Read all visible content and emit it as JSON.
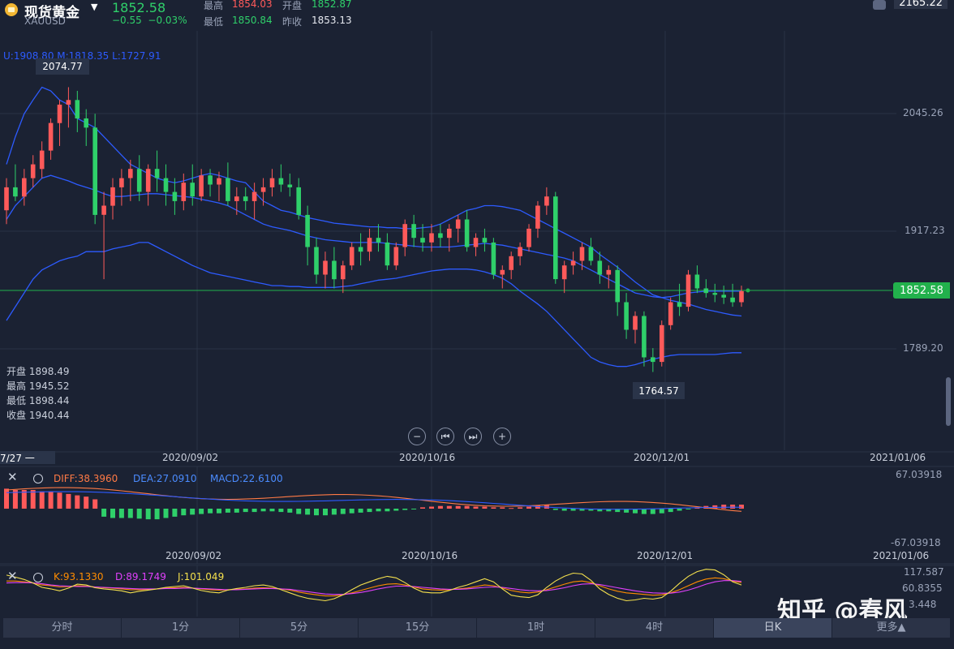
{
  "header": {
    "name": "现货黄金",
    "symbol": "XAUUSD",
    "price": "1852.58",
    "change": "−0.55",
    "change_pct": "−0.03%",
    "high_label": "最高",
    "high_value": "1854.03",
    "open_label": "开盘",
    "open_value": "1852.87",
    "low_label": "最低",
    "low_value": "1850.84",
    "prev_label": "昨收",
    "prev_value": "1853.13",
    "top_right_value": "2165.22"
  },
  "boll": {
    "text": "U:1908.80   M:1818.35   L:1727.91"
  },
  "ohlc_box": {
    "open_label": "开盘",
    "open_value": "1898.49",
    "high_label": "最高",
    "high_value": "1945.52",
    "low_label": "最低",
    "low_value": "1898.44",
    "close_label": "收盘",
    "close_value": "1940.44"
  },
  "markers": {
    "high": "2074.77",
    "low": "1764.57",
    "current": "1852.58"
  },
  "start_date": "7/27 一",
  "macd": {
    "diff": "DIFF:38.3960",
    "dea": "DEA:27.0910",
    "macd": "MACD:22.6100",
    "ymax": "67.03918",
    "ymin": "-67.03918"
  },
  "kdj": {
    "k": "K:93.1330",
    "d": "D:89.1749",
    "j": "J:101.049",
    "ytop": "117.587",
    "ymid": "60.8355",
    "ylow": "3.448"
  },
  "tabs": [
    "分时",
    "1分",
    "5分",
    "15分",
    "1时",
    "4时",
    "日K",
    "更多▲"
  ],
  "watermark": "知乎 @春风",
  "colors": {
    "up": "#ff5a5a",
    "down": "#2fd06a",
    "band": "#2d5bff",
    "mid_line": "#2d5bff",
    "diff": "#ff7a45",
    "dea": "#2d5bff",
    "k": "#ff8c00",
    "d": "#e040fb",
    "j": "#f4e04d",
    "current_line": "#22b14c"
  },
  "chart_data": {
    "type": "candlestick",
    "title": "现货黄金 XAUUSD 日K",
    "x_ticks": [
      "2020/09/02",
      "2020/10/16",
      "2020/12/01",
      "2021/01/06"
    ],
    "y_ticks": [
      2045.26,
      1917.23,
      1789.2
    ],
    "current_price": 1852.58,
    "ohlc": [
      [
        1940,
        1975,
        1925,
        1965
      ],
      [
        1965,
        1990,
        1950,
        1955
      ],
      [
        1955,
        1985,
        1945,
        1975
      ],
      [
        1975,
        2000,
        1965,
        1990
      ],
      [
        1985,
        2015,
        1975,
        2005
      ],
      [
        2005,
        2040,
        1995,
        2035
      ],
      [
        2035,
        2060,
        2010,
        2055
      ],
      [
        2055,
        2074,
        2030,
        2060
      ],
      [
        2060,
        2070,
        2025,
        2040
      ],
      [
        2040,
        2050,
        2010,
        2030
      ],
      [
        2030,
        2045,
        1925,
        1935
      ],
      [
        1935,
        1960,
        1865,
        1945
      ],
      [
        1945,
        1975,
        1930,
        1965
      ],
      [
        1965,
        1985,
        1945,
        1975
      ],
      [
        1975,
        1995,
        1950,
        1985
      ],
      [
        1985,
        2000,
        1950,
        1960
      ],
      [
        1960,
        1990,
        1945,
        1985
      ],
      [
        1985,
        2005,
        1960,
        1975
      ],
      [
        1975,
        1990,
        1945,
        1960
      ],
      [
        1960,
        1975,
        1935,
        1950
      ],
      [
        1950,
        1980,
        1940,
        1970
      ],
      [
        1970,
        1990,
        1945,
        1955
      ],
      [
        1955,
        1985,
        1950,
        1978
      ],
      [
        1978,
        1985,
        1955,
        1968
      ],
      [
        1968,
        1982,
        1950,
        1975
      ],
      [
        1975,
        1992,
        1945,
        1950
      ],
      [
        1950,
        1965,
        1935,
        1955
      ],
      [
        1955,
        1965,
        1940,
        1950
      ],
      [
        1950,
        1970,
        1930,
        1960
      ],
      [
        1960,
        1975,
        1945,
        1965
      ],
      [
        1965,
        1985,
        1955,
        1975
      ],
      [
        1975,
        1990,
        1960,
        1968
      ],
      [
        1968,
        1980,
        1955,
        1965
      ],
      [
        1965,
        1975,
        1930,
        1935
      ],
      [
        1935,
        1945,
        1880,
        1900
      ],
      [
        1900,
        1910,
        1860,
        1870
      ],
      [
        1870,
        1895,
        1855,
        1885
      ],
      [
        1885,
        1900,
        1855,
        1865
      ],
      [
        1865,
        1885,
        1850,
        1880
      ],
      [
        1880,
        1905,
        1875,
        1900
      ],
      [
        1900,
        1915,
        1880,
        1895
      ],
      [
        1895,
        1920,
        1885,
        1910
      ],
      [
        1910,
        1925,
        1895,
        1905
      ],
      [
        1905,
        1915,
        1875,
        1880
      ],
      [
        1880,
        1905,
        1875,
        1900
      ],
      [
        1900,
        1930,
        1890,
        1925
      ],
      [
        1925,
        1935,
        1900,
        1910
      ],
      [
        1910,
        1925,
        1895,
        1905
      ],
      [
        1905,
        1925,
        1895,
        1915
      ],
      [
        1915,
        1925,
        1900,
        1910
      ],
      [
        1910,
        1925,
        1895,
        1920
      ],
      [
        1920,
        1935,
        1905,
        1930
      ],
      [
        1930,
        1940,
        1895,
        1900
      ],
      [
        1900,
        1915,
        1890,
        1910
      ],
      [
        1910,
        1920,
        1895,
        1905
      ],
      [
        1905,
        1910,
        1865,
        1870
      ],
      [
        1870,
        1880,
        1855,
        1875
      ],
      [
        1875,
        1895,
        1865,
        1890
      ],
      [
        1890,
        1905,
        1880,
        1900
      ],
      [
        1900,
        1925,
        1895,
        1920
      ],
      [
        1920,
        1950,
        1910,
        1945
      ],
      [
        1945,
        1965,
        1935,
        1955
      ],
      [
        1955,
        1960,
        1860,
        1865
      ],
      [
        1865,
        1885,
        1850,
        1880
      ],
      [
        1880,
        1895,
        1870,
        1885
      ],
      [
        1885,
        1905,
        1875,
        1900
      ],
      [
        1900,
        1910,
        1880,
        1885
      ],
      [
        1885,
        1895,
        1860,
        1870
      ],
      [
        1870,
        1880,
        1855,
        1875
      ],
      [
        1875,
        1880,
        1825,
        1840
      ],
      [
        1840,
        1850,
        1800,
        1810
      ],
      [
        1810,
        1830,
        1795,
        1825
      ],
      [
        1825,
        1830,
        1770,
        1780
      ],
      [
        1780,
        1790,
        1764,
        1775
      ],
      [
        1775,
        1820,
        1770,
        1815
      ],
      [
        1815,
        1845,
        1810,
        1840
      ],
      [
        1840,
        1860,
        1825,
        1835
      ],
      [
        1835,
        1875,
        1830,
        1870
      ],
      [
        1870,
        1880,
        1850,
        1855
      ],
      [
        1855,
        1865,
        1845,
        1850
      ],
      [
        1850,
        1860,
        1840,
        1848
      ],
      [
        1848,
        1858,
        1838,
        1845
      ],
      [
        1845,
        1860,
        1835,
        1840
      ],
      [
        1840,
        1858,
        1835,
        1852
      ]
    ],
    "boll_upper": [
      1990,
      2020,
      2045,
      2060,
      2074,
      2070,
      2060,
      2055,
      2040,
      2035,
      2030,
      2020,
      2010,
      2000,
      1990,
      1985,
      1980,
      1975,
      1972,
      1970,
      1972,
      1975,
      1978,
      1980,
      1978,
      1975,
      1972,
      1970,
      1960,
      1950,
      1945,
      1940,
      1938,
      1935,
      1932,
      1930,
      1928,
      1926,
      1925,
      1924,
      1923,
      1922,
      1922,
      1921,
      1921,
      1920,
      1920,
      1921,
      1922,
      1925,
      1930,
      1935,
      1940,
      1942,
      1945,
      1945,
      1944,
      1942,
      1940,
      1935,
      1930,
      1925,
      1920,
      1915,
      1910,
      1905,
      1900,
      1892,
      1885,
      1878,
      1870,
      1862,
      1855,
      1848,
      1845,
      1842,
      1840,
      1838,
      1835,
      1832,
      1830,
      1828,
      1826,
      1825
    ],
    "boll_mid": [
      1930,
      1945,
      1955,
      1965,
      1975,
      1978,
      1975,
      1972,
      1968,
      1965,
      1962,
      1958,
      1955,
      1955,
      1956,
      1957,
      1958,
      1958,
      1957,
      1956,
      1955,
      1954,
      1952,
      1950,
      1948,
      1945,
      1940,
      1935,
      1930,
      1925,
      1922,
      1920,
      1918,
      1915,
      1912,
      1910,
      1908,
      1907,
      1906,
      1905,
      1905,
      1905,
      1905,
      1904,
      1903,
      1902,
      1901,
      1900,
      1900,
      1900,
      1900,
      1901,
      1902,
      1903,
      1904,
      1903,
      1902,
      1900,
      1898,
      1896,
      1894,
      1892,
      1890,
      1888,
      1885,
      1880,
      1875,
      1870,
      1865,
      1860,
      1855,
      1850,
      1848,
      1846,
      1845,
      1846,
      1848,
      1850,
      1851,
      1852,
      1852,
      1852,
      1852,
      1852
    ],
    "boll_lower": [
      1820,
      1835,
      1850,
      1865,
      1875,
      1880,
      1885,
      1888,
      1890,
      1895,
      1895,
      1895,
      1898,
      1900,
      1902,
      1905,
      1905,
      1900,
      1895,
      1890,
      1885,
      1880,
      1876,
      1872,
      1870,
      1868,
      1866,
      1864,
      1862,
      1860,
      1858,
      1858,
      1857,
      1857,
      1856,
      1856,
      1856,
      1856,
      1857,
      1858,
      1860,
      1862,
      1864,
      1865,
      1866,
      1868,
      1870,
      1872,
      1874,
      1875,
      1876,
      1876,
      1876,
      1875,
      1873,
      1870,
      1866,
      1860,
      1852,
      1845,
      1838,
      1830,
      1820,
      1810,
      1800,
      1790,
      1780,
      1775,
      1772,
      1770,
      1770,
      1772,
      1775,
      1778,
      1780,
      1782,
      1783,
      1783,
      1783,
      1783,
      1783,
      1784,
      1785,
      1785
    ],
    "macd_hist": [
      30,
      28,
      28,
      28,
      26,
      26,
      24,
      22,
      20,
      18,
      14,
      -12,
      -14,
      -14,
      -14,
      -15,
      -16,
      -16,
      -14,
      -12,
      -10,
      -9,
      -8,
      -7,
      -7,
      -6,
      -6,
      -5,
      -5,
      -4,
      -4,
      -5,
      -6,
      -8,
      -9,
      -10,
      -10,
      -9,
      -8,
      -7,
      -6,
      -5,
      -4,
      -4,
      -3,
      -2,
      -1,
      2,
      3,
      4,
      4,
      4,
      4,
      3,
      3,
      2,
      2,
      1,
      2,
      3,
      5,
      6,
      -2,
      -3,
      -3,
      -3,
      -3,
      -4,
      -4,
      -5,
      -6,
      -7,
      -8,
      -8,
      -7,
      -5,
      -3,
      -1,
      2,
      4,
      5,
      6,
      6,
      6
    ],
    "kdj_k": [
      80,
      80,
      78,
      75,
      70,
      68,
      65,
      66,
      68,
      67,
      65,
      63,
      62,
      60,
      58,
      58,
      59,
      60,
      62,
      63,
      64,
      62,
      60,
      58,
      57,
      58,
      59,
      60,
      62,
      63,
      62,
      60,
      57,
      52,
      48,
      45,
      42,
      42,
      45,
      50,
      56,
      62,
      68,
      72,
      73,
      70,
      65,
      60,
      58,
      57,
      58,
      60,
      62,
      66,
      70,
      68,
      62,
      56,
      52,
      50,
      52,
      58,
      65,
      72,
      78,
      80,
      76,
      68,
      60,
      54,
      50,
      48,
      46,
      44,
      45,
      50,
      58,
      68,
      78,
      85,
      88,
      86,
      80,
      76
    ],
    "kdj_d": [
      75,
      76,
      76,
      75,
      73,
      70,
      68,
      67,
      66,
      66,
      65,
      64,
      63,
      62,
      61,
      60,
      60,
      60,
      61,
      61,
      62,
      62,
      61,
      60,
      59,
      58,
      58,
      59,
      60,
      61,
      61,
      60,
      59,
      56,
      53,
      50,
      47,
      46,
      46,
      48,
      51,
      55,
      60,
      64,
      67,
      67,
      66,
      64,
      62,
      60,
      59,
      59,
      60,
      62,
      64,
      65,
      64,
      61,
      58,
      56,
      55,
      56,
      59,
      63,
      68,
      72,
      73,
      71,
      67,
      63,
      59,
      55,
      52,
      50,
      49,
      49,
      52,
      57,
      64,
      72,
      78,
      81,
      81,
      79
    ],
    "kdj_j": [
      95,
      90,
      84,
      75,
      64,
      60,
      55,
      62,
      72,
      70,
      63,
      60,
      58,
      55,
      50,
      54,
      57,
      60,
      64,
      66,
      68,
      62,
      56,
      52,
      50,
      57,
      61,
      64,
      68,
      70,
      66,
      58,
      50,
      42,
      36,
      33,
      30,
      35,
      45,
      58,
      70,
      78,
      86,
      92,
      88,
      76,
      62,
      52,
      50,
      50,
      56,
      64,
      70,
      78,
      86,
      78,
      60,
      44,
      40,
      38,
      45,
      64,
      80,
      92,
      100,
      98,
      82,
      60,
      46,
      36,
      30,
      32,
      36,
      34,
      38,
      54,
      74,
      92,
      104,
      110,
      108,
      96,
      78,
      70
    ]
  }
}
